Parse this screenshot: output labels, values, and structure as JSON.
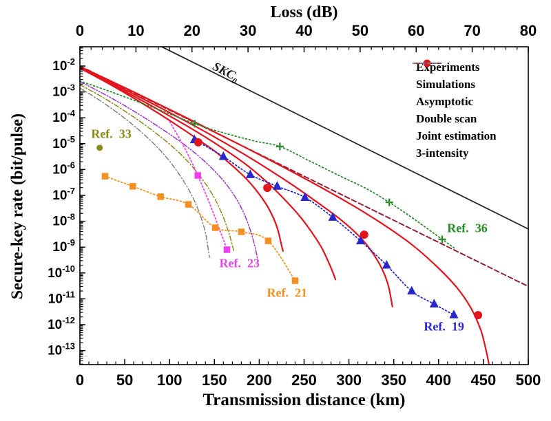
{
  "chart_data": {
    "type": "line",
    "title": "",
    "xlabel": "Transmission distance (km)",
    "x2label": "Loss (dB)",
    "ylabel": "Secure-key rate (bit/pulse)",
    "xlim": [
      0,
      500
    ],
    "x2lim": [
      0,
      80
    ],
    "ylim_log10": [
      -13.54,
      -1.26
    ],
    "x_ticks": [
      0,
      50,
      100,
      150,
      200,
      250,
      300,
      350,
      400,
      450,
      500
    ],
    "x_minor_step": 10,
    "x2_ticks": [
      0,
      10,
      20,
      30,
      40,
      50,
      60,
      70,
      80
    ],
    "x2_minor_step": 2,
    "y_tick_exponents": [
      -2,
      -3,
      -4,
      -5,
      -6,
      -7,
      -8,
      -9,
      -10,
      -11,
      -12,
      -13
    ],
    "grid": false,
    "legend_position": "top-right-inside",
    "series": [
      {
        "name": "skc0",
        "label": "SKC0",
        "color": "#2b2b2b",
        "line_width": 1.8,
        "dash": "",
        "marker": "none",
        "marker_size": 0,
        "points": [
          [
            91.5,
            -1.26
          ],
          [
            500,
            -8.3
          ]
        ]
      },
      {
        "name": "asymptotic",
        "label": "Asymptotic",
        "color": "#8f2336",
        "line_width": 2.0,
        "dash": "7,4",
        "marker": "none",
        "marker_size": 0,
        "points": [
          [
            0,
            -2.0
          ],
          [
            500,
            -10.52
          ]
        ]
      },
      {
        "name": "simulation-1",
        "label": "Simulations",
        "color": "#e2141e",
        "line_width": 2.2,
        "dash": "",
        "marker": "none",
        "marker_size": 0,
        "points": [
          [
            0,
            -2.08
          ],
          [
            30,
            -2.64
          ],
          [
            60,
            -3.24
          ],
          [
            90,
            -3.88
          ],
          [
            120,
            -4.56
          ],
          [
            132,
            -4.85
          ],
          [
            150,
            -5.28
          ],
          [
            170,
            -5.85
          ],
          [
            188,
            -6.45
          ],
          [
            202,
            -7.05
          ],
          [
            212,
            -7.6
          ],
          [
            220,
            -8.25
          ],
          [
            225,
            -8.95
          ],
          [
            226.5,
            -9.15
          ]
        ]
      },
      {
        "name": "simulation-2",
        "label": "Simulations",
        "color": "#e2141e",
        "line_width": 2.2,
        "dash": "",
        "marker": "none",
        "marker_size": 0,
        "points": [
          [
            0,
            -2.06
          ],
          [
            40,
            -2.79
          ],
          [
            80,
            -3.54
          ],
          [
            120,
            -4.33
          ],
          [
            155,
            -5.08
          ],
          [
            185,
            -5.8
          ],
          [
            209,
            -6.5
          ],
          [
            228,
            -7.15
          ],
          [
            245,
            -7.8
          ],
          [
            258,
            -8.4
          ],
          [
            270,
            -9.05
          ],
          [
            280,
            -9.8
          ],
          [
            285,
            -10.25
          ]
        ]
      },
      {
        "name": "simulation-3",
        "label": "Simulations",
        "color": "#e2141e",
        "line_width": 2.2,
        "dash": "",
        "marker": "none",
        "marker_size": 0,
        "points": [
          [
            0,
            -2.04
          ],
          [
            50,
            -2.91
          ],
          [
            100,
            -3.8
          ],
          [
            150,
            -4.74
          ],
          [
            195,
            -5.66
          ],
          [
            235,
            -6.55
          ],
          [
            268,
            -7.35
          ],
          [
            293,
            -8.0
          ],
          [
            312,
            -8.6
          ],
          [
            326,
            -9.2
          ],
          [
            337,
            -9.85
          ],
          [
            344,
            -10.5
          ],
          [
            348.5,
            -11.3
          ]
        ]
      },
      {
        "name": "simulation-4",
        "label": "Simulations",
        "color": "#e2141e",
        "line_width": 2.2,
        "dash": "",
        "marker": "none",
        "marker_size": 0,
        "points": [
          [
            0,
            -2.02
          ],
          [
            60,
            -3.0
          ],
          [
            120,
            -4.02
          ],
          [
            180,
            -5.07
          ],
          [
            240,
            -6.15
          ],
          [
            295,
            -7.2
          ],
          [
            335,
            -8.05
          ],
          [
            370,
            -8.9
          ],
          [
            398,
            -9.75
          ],
          [
            420,
            -10.55
          ],
          [
            436,
            -11.35
          ],
          [
            447,
            -12.2
          ],
          [
            453,
            -13.0
          ],
          [
            456,
            -13.5
          ]
        ]
      },
      {
        "name": "double-scan",
        "label": "Double scan",
        "color": "#9933cc",
        "line_width": 1.5,
        "dash": "7,2.5,1.5,2.5,1.5,2.5",
        "marker": "none",
        "marker_size": 0,
        "points": [
          [
            0,
            -2.6
          ],
          [
            30,
            -3.14
          ],
          [
            60,
            -3.74
          ],
          [
            90,
            -4.4
          ],
          [
            115,
            -5.0
          ],
          [
            138,
            -5.65
          ],
          [
            158,
            -6.35
          ],
          [
            172,
            -7.0
          ],
          [
            183,
            -7.7
          ],
          [
            191,
            -8.45
          ],
          [
            196,
            -9.1
          ],
          [
            198,
            -9.45
          ]
        ]
      },
      {
        "name": "joint-estimation",
        "label": "Joint estimation",
        "color": "#8a8a19",
        "line_width": 1.5,
        "dash": "7,3,1.5,3",
        "marker": "none",
        "marker_size": 0,
        "points": [
          [
            0,
            -2.72
          ],
          [
            25,
            -3.2
          ],
          [
            50,
            -3.74
          ],
          [
            75,
            -4.34
          ],
          [
            100,
            -5.02
          ],
          [
            120,
            -5.68
          ],
          [
            137,
            -6.4
          ],
          [
            150,
            -7.1
          ],
          [
            160,
            -7.85
          ],
          [
            167,
            -8.55
          ],
          [
            172,
            -9.2
          ]
        ]
      },
      {
        "name": "three-intensity",
        "label": "3-intensity",
        "color": "#7a7a7a",
        "line_width": 1.4,
        "dash": "7,3,1.5,3",
        "marker": "none",
        "marker_size": 0,
        "points": [
          [
            0,
            -2.85
          ],
          [
            20,
            -3.28
          ],
          [
            40,
            -3.76
          ],
          [
            60,
            -4.3
          ],
          [
            80,
            -4.92
          ],
          [
            97,
            -5.55
          ],
          [
            112,
            -6.25
          ],
          [
            124,
            -6.95
          ],
          [
            133,
            -7.65
          ],
          [
            140,
            -8.45
          ],
          [
            144.5,
            -9.4
          ]
        ]
      },
      {
        "name": "ref-23",
        "label": "Ref. 23",
        "color": "#f23ef2",
        "line_width": 1.8,
        "dash": "1.8,3.2",
        "marker": "square",
        "marker_size": 9.5,
        "points": [
          [
            100,
            -4.15
          ],
          [
            111,
            -4.8
          ],
          [
            121,
            -5.45
          ],
          [
            131.5,
            -6.23
          ],
          [
            141,
            -7.0
          ],
          [
            149,
            -7.7
          ],
          [
            156,
            -8.35
          ],
          [
            161,
            -8.8
          ],
          [
            164.5,
            -9.2
          ]
        ],
        "marker_points": [
          [
            131.5,
            -6.23
          ],
          [
            164,
            -9.1
          ]
        ]
      },
      {
        "name": "ref-21",
        "label": "Ref. 21",
        "color": "#f59122",
        "line_width": 1.8,
        "dash": "1.8,3.2",
        "marker": "square",
        "marker_size": 9.5,
        "points": [
          [
            28,
            -6.26
          ],
          [
            59,
            -6.65
          ],
          [
            90,
            -7.05
          ],
          [
            121,
            -7.35
          ],
          [
            151,
            -8.25
          ],
          [
            180,
            -8.41
          ],
          [
            210,
            -8.76
          ],
          [
            240,
            -10.3
          ]
        ]
      },
      {
        "name": "ref-36",
        "label": "Ref. 36",
        "color": "#2e8b2e",
        "line_width": 1.8,
        "dash": "1.8,3.4",
        "marker": "plus",
        "marker_size": 11,
        "points": [
          [
            0,
            -2.58
          ],
          [
            35,
            -3.0
          ],
          [
            70,
            -3.45
          ],
          [
            100,
            -3.85
          ],
          [
            128,
            -4.23
          ],
          [
            160,
            -4.58
          ],
          [
            195,
            -4.9
          ],
          [
            223,
            -5.11
          ],
          [
            255,
            -5.65
          ],
          [
            290,
            -6.25
          ],
          [
            320,
            -6.75
          ],
          [
            345,
            -7.27
          ],
          [
            372,
            -7.9
          ],
          [
            404,
            -8.7
          ],
          [
            418,
            -9.05
          ]
        ],
        "marker_points": [
          [
            128,
            -4.23
          ],
          [
            223,
            -5.11
          ],
          [
            345,
            -7.27
          ],
          [
            404,
            -8.7
          ]
        ]
      },
      {
        "name": "ref-19",
        "label": "Ref. 19",
        "color": "#2727cc",
        "line_width": 1.8,
        "dash": "1.8,3.2",
        "marker": "triangle",
        "marker_size": 13,
        "points": [
          [
            127.7,
            -4.85
          ],
          [
            160,
            -5.5
          ],
          [
            190,
            -6.2
          ],
          [
            220,
            -6.65
          ],
          [
            251,
            -7.08
          ],
          [
            282,
            -7.85
          ],
          [
            313,
            -8.76
          ],
          [
            342,
            -9.7
          ],
          [
            370,
            -10.7
          ],
          [
            395,
            -11.2
          ],
          [
            417,
            -11.62
          ]
        ]
      },
      {
        "name": "ref-33",
        "label": "Ref. 33",
        "color": "#8a8a19",
        "line_width": 0,
        "dash": "",
        "marker": "dot",
        "marker_size": 9,
        "points": [
          [
            22,
            -5.16
          ]
        ]
      },
      {
        "name": "experiments",
        "label": "Experiments",
        "color": "#e2141e",
        "line_width": 0,
        "dash": "",
        "marker": "circle",
        "marker_size": 12,
        "points": [
          [
            132,
            -4.95
          ],
          [
            209,
            -6.71
          ],
          [
            317,
            -8.52
          ],
          [
            444,
            -11.63
          ]
        ]
      }
    ],
    "annotations": [
      {
        "name": "skc0-label",
        "text": "SKC",
        "sub": "0",
        "x_km": 162,
        "y_log": -2.27,
        "color": "#1a1a1a",
        "italic": true,
        "rotate_deg": 27,
        "size": 18
      },
      {
        "name": "ref-33-label",
        "text": "Ref.  33",
        "x_km": 35,
        "y_log": -4.62,
        "color": "#8a8a19",
        "size": 18
      },
      {
        "name": "ref-23-label",
        "text": "Ref.  23",
        "x_km": 178,
        "y_log": -9.62,
        "color": "#e549e5",
        "size": 18
      },
      {
        "name": "ref-21-label",
        "text": "Ref.  21",
        "x_km": 231,
        "y_log": -10.78,
        "color": "#f59122",
        "size": 18
      },
      {
        "name": "ref-19-label",
        "text": "Ref.  19",
        "x_km": 406,
        "y_log": -12.08,
        "color": "#2a2ad0",
        "size": 18
      },
      {
        "name": "ref-36-label",
        "text": "Ref.  36",
        "x_km": 432,
        "y_log": -8.28,
        "color": "#1f8f1f",
        "size": 18
      }
    ],
    "legend": [
      {
        "label": "Experiments",
        "color": "#e2141e",
        "swatch": "circle",
        "dash": ""
      },
      {
        "label": "Simulations",
        "color": "#e2141e",
        "swatch": "line",
        "dash": ""
      },
      {
        "label": "Asymptotic",
        "color": "#8f2336",
        "swatch": "line",
        "dash": "6,3"
      },
      {
        "label": "Double scan",
        "color": "#9933cc",
        "swatch": "line",
        "dash": "5,2,1.5,2,1.5,2"
      },
      {
        "label": "Joint estimation",
        "color": "#8a8a19",
        "swatch": "line",
        "dash": "5,2,1.5,2"
      },
      {
        "label": "3-intensity",
        "color": "#7a7a7a",
        "swatch": "line",
        "dash": "5,2,1.5,2"
      }
    ]
  }
}
